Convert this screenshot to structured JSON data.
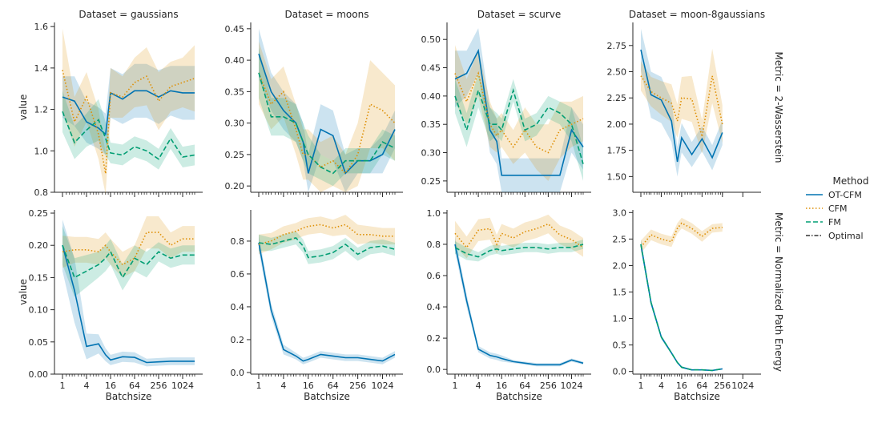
{
  "chart_data": {
    "type": "line",
    "x_axis_label": "Batchsize",
    "y_axis_label": "value",
    "x_scale": "log2",
    "x_ticks": [
      1,
      4,
      16,
      64,
      256,
      1024
    ],
    "legend": {
      "title": "Method",
      "placement": "right",
      "entries": [
        {
          "name": "OT-CFM",
          "color": "#0173b2",
          "dash": "solid"
        },
        {
          "name": "CFM",
          "color": "#de8f05",
          "dash": "dotted"
        },
        {
          "name": "FM",
          "color": "#029e73",
          "dash": "dashed"
        },
        {
          "name": "Optimal",
          "color": "#333333",
          "dash": "dashdot"
        }
      ]
    },
    "x": [
      1,
      2,
      4,
      8,
      12,
      16,
      32,
      64,
      128,
      256,
      512,
      1024,
      2048
    ],
    "panels": [
      {
        "row": 0,
        "col": 0,
        "title": "Dataset = gaussians",
        "ylim": [
          0.8,
          1.62
        ],
        "yticks": [
          "0.8",
          "1.0",
          "1.2",
          "1.4",
          "1.6"
        ],
        "yvals": [
          0.8,
          1.0,
          1.2,
          1.4,
          1.6
        ],
        "series": [
          {
            "name": "OT-CFM",
            "values": [
              1.26,
              1.24,
              1.14,
              1.11,
              1.08,
              1.28,
              1.25,
              1.29,
              1.29,
              1.26,
              1.29,
              1.28,
              1.28
            ],
            "band": [
              0.1,
              0.12,
              0.1,
              0.1,
              0.1,
              0.12,
              0.12,
              0.13,
              0.13,
              0.13,
              0.12,
              0.13,
              0.13
            ]
          },
          {
            "name": "CFM",
            "values": [
              1.39,
              1.14,
              1.26,
              1.08,
              0.89,
              1.28,
              1.26,
              1.33,
              1.36,
              1.24,
              1.31,
              1.33,
              1.35
            ],
            "band": [
              0.2,
              0.12,
              0.12,
              0.12,
              0.1,
              0.12,
              0.1,
              0.12,
              0.14,
              0.14,
              0.12,
              0.12,
              0.16
            ]
          },
          {
            "name": "FM",
            "values": [
              1.19,
              1.04,
              1.1,
              1.15,
              1.06,
              0.99,
              0.98,
              1.02,
              1.0,
              0.96,
              1.06,
              0.97,
              0.98
            ],
            "band": [
              0.1,
              0.08,
              0.08,
              0.1,
              0.08,
              0.05,
              0.05,
              0.05,
              0.05,
              0.05,
              0.05,
              0.05,
              0.05
            ]
          }
        ]
      },
      {
        "row": 0,
        "col": 1,
        "title": "Dataset = moons",
        "ylim": [
          0.19,
          0.46
        ],
        "yticks": [
          "0.20",
          "0.25",
          "0.30",
          "0.35",
          "0.40",
          "0.45"
        ],
        "yvals": [
          0.2,
          0.25,
          0.3,
          0.35,
          0.4,
          0.45
        ],
        "series": [
          {
            "name": "OT-CFM",
            "values": [
              0.41,
              0.35,
              0.32,
              0.3,
              0.27,
              0.22,
              0.29,
              0.28,
              0.22,
              0.24,
              0.24,
              0.25,
              0.29
            ],
            "band": [
              0.04,
              0.03,
              0.03,
              0.03,
              0.03,
              0.03,
              0.04,
              0.04,
              0.03,
              0.02,
              0.02,
              0.03,
              0.03
            ]
          },
          {
            "name": "CFM",
            "values": [
              0.38,
              0.33,
              0.35,
              0.29,
              0.25,
              0.25,
              0.23,
              0.24,
              0.22,
              0.25,
              0.33,
              0.32,
              0.3
            ],
            "band": [
              0.05,
              0.04,
              0.04,
              0.04,
              0.04,
              0.04,
              0.04,
              0.04,
              0.03,
              0.05,
              0.07,
              0.06,
              0.06
            ]
          },
          {
            "name": "FM",
            "values": [
              0.38,
              0.31,
              0.31,
              0.3,
              0.27,
              0.25,
              0.23,
              0.22,
              0.24,
              0.24,
              0.24,
              0.27,
              0.26
            ],
            "band": [
              0.04,
              0.03,
              0.03,
              0.03,
              0.03,
              0.03,
              0.02,
              0.02,
              0.02,
              0.02,
              0.02,
              0.02,
              0.02
            ]
          }
        ]
      },
      {
        "row": 0,
        "col": 2,
        "title": "Dataset = scurve",
        "ylim": [
          0.23,
          0.53
        ],
        "yticks": [
          "0.25",
          "0.30",
          "0.35",
          "0.40",
          "0.45",
          "0.50"
        ],
        "yvals": [
          0.25,
          0.3,
          0.35,
          0.4,
          0.45,
          0.5
        ],
        "series": [
          {
            "name": "OT-CFM",
            "values": [
              0.43,
              0.44,
              0.48,
              0.34,
              0.32,
              0.26,
              0.26,
              0.26,
              0.26,
              0.26,
              0.26,
              0.34,
              0.31
            ],
            "band": [
              0.05,
              0.04,
              0.04,
              0.04,
              0.04,
              0.03,
              0.03,
              0.03,
              0.03,
              0.03,
              0.03,
              0.04,
              0.04
            ]
          },
          {
            "name": "CFM",
            "values": [
              0.44,
              0.39,
              0.44,
              0.35,
              0.33,
              0.34,
              0.31,
              0.34,
              0.31,
              0.3,
              0.34,
              0.35,
              0.36
            ],
            "band": [
              0.05,
              0.04,
              0.04,
              0.04,
              0.03,
              0.03,
              0.03,
              0.04,
              0.04,
              0.05,
              0.05,
              0.04,
              0.04
            ]
          },
          {
            "name": "FM",
            "values": [
              0.4,
              0.34,
              0.41,
              0.35,
              0.35,
              0.34,
              0.41,
              0.34,
              0.35,
              0.38,
              0.37,
              0.35,
              0.28
            ],
            "band": [
              0.03,
              0.03,
              0.03,
              0.03,
              0.02,
              0.02,
              0.02,
              0.02,
              0.02,
              0.02,
              0.02,
              0.03,
              0.03
            ]
          }
        ]
      },
      {
        "row": 0,
        "col": 3,
        "title": "Dataset = moon-8gaussians",
        "ylim": [
          1.35,
          2.97
        ],
        "yticks": [
          "1.50",
          "1.75",
          "2.00",
          "2.25",
          "2.50",
          "2.75"
        ],
        "yvals": [
          1.5,
          1.75,
          2.0,
          2.25,
          2.5,
          2.75
        ],
        "series": [
          {
            "name": "OT-CFM",
            "values": [
              2.71,
              2.28,
              2.23,
              2.03,
              1.64,
              1.87,
              1.71,
              1.86,
              1.68,
              1.92
            ],
            "band": [
              0.2,
              0.22,
              0.22,
              0.2,
              0.14,
              0.14,
              0.12,
              0.12,
              0.12,
              0.12
            ]
          },
          {
            "name": "CFM",
            "values": [
              2.46,
              2.31,
              2.25,
              2.2,
              2.03,
              2.25,
              2.24,
              1.88,
              2.46,
              2.0
            ],
            "band": [
              0.14,
              0.14,
              0.16,
              0.18,
              0.16,
              0.2,
              0.22,
              0.16,
              0.26,
              0.18
            ]
          }
        ]
      },
      {
        "row": 1,
        "col": 0,
        "title": "",
        "ylim": [
          0.0,
          0.255
        ],
        "yticks": [
          "0.00",
          "0.05",
          "0.10",
          "0.15",
          "0.20",
          "0.25"
        ],
        "yvals": [
          0.0,
          0.05,
          0.1,
          0.15,
          0.2,
          0.25
        ],
        "series": [
          {
            "name": "OT-CFM",
            "values": [
              0.2,
              0.13,
              0.043,
              0.047,
              0.03,
              0.022,
              0.027,
              0.026,
              0.018,
              0.019,
              0.02,
              0.02,
              0.02
            ],
            "band": [
              0.04,
              0.05,
              0.02,
              0.015,
              0.01,
              0.008,
              0.008,
              0.008,
              0.006,
              0.006,
              0.006,
              0.006,
              0.006
            ]
          },
          {
            "name": "CFM",
            "values": [
              0.19,
              0.193,
              0.193,
              0.19,
              0.2,
              0.19,
              0.17,
              0.18,
              0.22,
              0.22,
              0.2,
              0.21,
              0.21
            ],
            "band": [
              0.025,
              0.02,
              0.02,
              0.02,
              0.02,
              0.02,
              0.02,
              0.02,
              0.025,
              0.025,
              0.02,
              0.02,
              0.02
            ]
          },
          {
            "name": "FM",
            "values": [
              0.2,
              0.15,
              0.16,
              0.17,
              0.18,
              0.19,
              0.15,
              0.18,
              0.17,
              0.19,
              0.18,
              0.185,
              0.185
            ],
            "band": [
              0.03,
              0.03,
              0.025,
              0.02,
              0.02,
              0.02,
              0.02,
              0.02,
              0.02,
              0.015,
              0.015,
              0.015,
              0.015
            ]
          }
        ]
      },
      {
        "row": 1,
        "col": 1,
        "title": "",
        "ylim": [
          -0.01,
          0.99
        ],
        "yticks": [
          "0.0",
          "0.2",
          "0.4",
          "0.6",
          "0.8"
        ],
        "yvals": [
          0.0,
          0.2,
          0.4,
          0.6,
          0.8
        ],
        "series": [
          {
            "name": "OT-CFM",
            "values": [
              0.79,
              0.38,
              0.14,
              0.1,
              0.07,
              0.08,
              0.11,
              0.1,
              0.09,
              0.09,
              0.08,
              0.07,
              0.11
            ],
            "band": [
              0.05,
              0.04,
              0.03,
              0.02,
              0.02,
              0.02,
              0.02,
              0.02,
              0.02,
              0.02,
              0.02,
              0.02,
              0.02
            ]
          },
          {
            "name": "CFM",
            "values": [
              0.78,
              0.8,
              0.84,
              0.86,
              0.88,
              0.89,
              0.9,
              0.88,
              0.9,
              0.84,
              0.84,
              0.83,
              0.83
            ],
            "band": [
              0.06,
              0.05,
              0.05,
              0.05,
              0.05,
              0.05,
              0.05,
              0.05,
              0.06,
              0.06,
              0.05,
              0.05,
              0.05
            ]
          },
          {
            "name": "FM",
            "values": [
              0.79,
              0.78,
              0.8,
              0.82,
              0.77,
              0.7,
              0.71,
              0.73,
              0.78,
              0.72,
              0.76,
              0.77,
              0.75
            ],
            "band": [
              0.05,
              0.04,
              0.04,
              0.04,
              0.04,
              0.04,
              0.04,
              0.04,
              0.04,
              0.04,
              0.04,
              0.04,
              0.04
            ]
          }
        ]
      },
      {
        "row": 1,
        "col": 2,
        "title": "",
        "ylim": [
          -0.03,
          1.02
        ],
        "yticks": [
          "0.0",
          "0.2",
          "0.4",
          "0.6",
          "0.8",
          "1.0"
        ],
        "yvals": [
          0.0,
          0.2,
          0.4,
          0.6,
          0.8,
          1.0
        ],
        "series": [
          {
            "name": "OT-CFM",
            "values": [
              0.8,
              0.44,
              0.13,
              0.09,
              0.08,
              0.07,
              0.05,
              0.04,
              0.03,
              0.03,
              0.03,
              0.06,
              0.04
            ],
            "band": [
              0.05,
              0.04,
              0.02,
              0.02,
              0.02,
              0.02,
              0.01,
              0.01,
              0.01,
              0.01,
              0.01,
              0.01,
              0.01
            ]
          },
          {
            "name": "CFM",
            "values": [
              0.87,
              0.78,
              0.89,
              0.9,
              0.8,
              0.87,
              0.84,
              0.88,
              0.9,
              0.93,
              0.86,
              0.83,
              0.78
            ],
            "band": [
              0.08,
              0.07,
              0.07,
              0.07,
              0.06,
              0.06,
              0.06,
              0.06,
              0.06,
              0.06,
              0.06,
              0.06,
              0.06
            ]
          },
          {
            "name": "FM",
            "values": [
              0.78,
              0.74,
              0.72,
              0.76,
              0.77,
              0.76,
              0.77,
              0.78,
              0.78,
              0.77,
              0.78,
              0.78,
              0.8
            ],
            "band": [
              0.04,
              0.04,
              0.03,
              0.03,
              0.03,
              0.03,
              0.03,
              0.03,
              0.03,
              0.03,
              0.03,
              0.03,
              0.03
            ]
          }
        ]
      },
      {
        "row": 1,
        "col": 3,
        "title": "",
        "ylim": [
          -0.05,
          3.05
        ],
        "yticks": [
          "0.0",
          "0.5",
          "1.0",
          "1.5",
          "2.0",
          "2.5",
          "3.0"
        ],
        "yvals": [
          0.0,
          0.5,
          1.0,
          1.5,
          2.0,
          2.5,
          3.0
        ],
        "series": [
          {
            "name": "OT-CFM",
            "values": [
              2.4,
              1.3,
              0.65,
              0.35,
              0.17,
              0.08,
              0.03,
              0.03,
              0.02,
              0.05
            ],
            "band": [
              0.1,
              0.06,
              0.04,
              0.03,
              0.02,
              0.02,
              0.01,
              0.01,
              0.01,
              0.01
            ]
          },
          {
            "name": "CFM",
            "values": [
              2.35,
              2.58,
              2.5,
              2.45,
              2.7,
              2.8,
              2.7,
              2.55,
              2.7,
              2.72
            ],
            "band": [
              0.12,
              0.1,
              0.1,
              0.1,
              0.1,
              0.1,
              0.1,
              0.1,
              0.08,
              0.08
            ]
          },
          {
            "name": "FM",
            "values": [
              2.4,
              1.3,
              0.65,
              0.35,
              0.17,
              0.08,
              0.03,
              0.03,
              0.02,
              0.05
            ],
            "band": [
              0.08,
              0.05,
              0.03,
              0.02,
              0.02,
              0.02,
              0.01,
              0.01,
              0.01,
              0.01
            ]
          }
        ]
      }
    ],
    "row_labels": [
      "Metric = 2-Wasserstein",
      "Metric = Normalized Path Energy"
    ]
  }
}
